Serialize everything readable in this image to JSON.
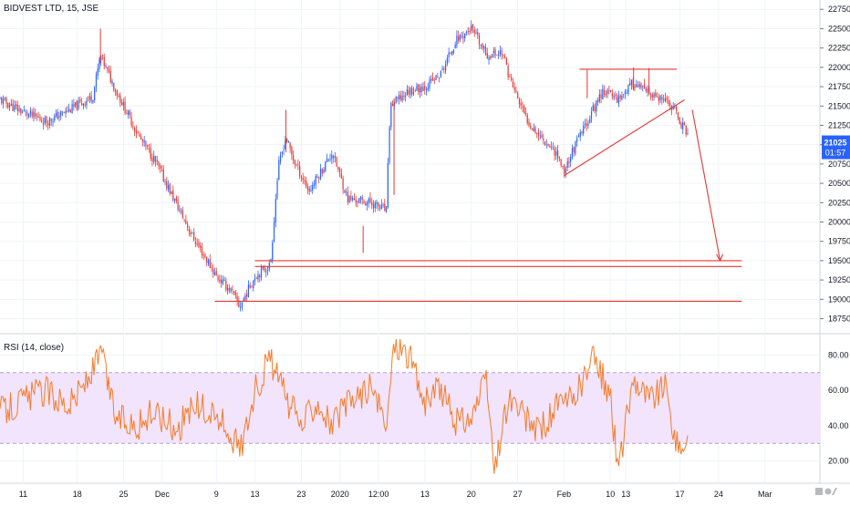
{
  "symbol_title": "BIDVEST LTD, 15, JSE",
  "rsi_title": "RSI (14, close)",
  "last_price": "21025",
  "countdown": "01:57",
  "colors": {
    "up": "#2962ff",
    "down": "#e53935",
    "drawing": "#e53935",
    "rsi_line": "#f57c2a",
    "rsi_band_fill": "#f1e4fc",
    "rsi_band_dash": "#b39ddb",
    "grid": "#f0f3fa",
    "axis_text": "#131722",
    "badge_bg": "#2962ff",
    "badge_text": "#ffffff"
  },
  "chart_data": [
    {
      "type": "candlestick",
      "title": "BIDVEST LTD, 15, JSE",
      "ylim": [
        18650,
        22800
      ],
      "y_ticks": [
        "22750",
        "22500",
        "22250",
        "22000",
        "21750",
        "21500",
        "21250",
        "21000",
        "20750",
        "20500",
        "20250",
        "20000",
        "19750",
        "19500",
        "19250",
        "19000",
        "18750"
      ],
      "x_ticks": [
        "11",
        "18",
        "25",
        "Dec",
        "9",
        "13",
        "23",
        "2020",
        "12:00",
        "13",
        "20",
        "27",
        "Feb",
        "10",
        "13",
        "17",
        "24",
        "Mar"
      ],
      "x_tick_pos": [
        3,
        10,
        16,
        21,
        28,
        33,
        39,
        44,
        49,
        55,
        61,
        67,
        73,
        79,
        81,
        88,
        93,
        99
      ],
      "x_range": [
        0,
        106
      ],
      "price_path": [
        [
          0,
          21580
        ],
        [
          3,
          21420
        ],
        [
          6,
          21300
        ],
        [
          9,
          21450
        ],
        [
          12,
          21620
        ],
        [
          13,
          22150
        ],
        [
          15,
          21700
        ],
        [
          18,
          21100
        ],
        [
          20,
          20800
        ],
        [
          22,
          20400
        ],
        [
          25,
          19800
        ],
        [
          28,
          19300
        ],
        [
          30,
          19100
        ],
        [
          31,
          18900
        ],
        [
          33,
          19300
        ],
        [
          35,
          19450
        ],
        [
          36,
          20700
        ],
        [
          37,
          21100
        ],
        [
          38,
          20800
        ],
        [
          40,
          20400
        ],
        [
          43,
          20900
        ],
        [
          45,
          20300
        ],
        [
          48,
          20250
        ],
        [
          50,
          20150
        ],
        [
          50.5,
          21500
        ],
        [
          53,
          21700
        ],
        [
          55,
          21750
        ],
        [
          57,
          21900
        ],
        [
          59,
          22350
        ],
        [
          61,
          22500
        ],
        [
          63,
          22150
        ],
        [
          65,
          22200
        ],
        [
          66,
          21850
        ],
        [
          68,
          21350
        ],
        [
          70,
          21100
        ],
        [
          72,
          20900
        ],
        [
          73,
          20650
        ],
        [
          74,
          20900
        ],
        [
          76,
          21300
        ],
        [
          78,
          21700
        ],
        [
          80,
          21600
        ],
        [
          82,
          21800
        ],
        [
          84,
          21650
        ],
        [
          86,
          21550
        ],
        [
          87,
          21500
        ],
        [
          88,
          21300
        ],
        [
          89,
          21150
        ]
      ],
      "vol_events": [
        [
          13,
          22500,
          22050
        ],
        [
          37,
          21450,
          20900
        ],
        [
          47,
          19950,
          19600
        ],
        [
          51,
          21600,
          20350
        ],
        [
          76,
          21980,
          21600
        ],
        [
          82,
          22000,
          21700
        ],
        [
          84,
          21990,
          21700
        ]
      ],
      "annotations": {
        "horizontal_levels": [
          {
            "y": 21975,
            "x_start": 75,
            "x_end": 87.6
          },
          {
            "y": 19500,
            "x_start": 33,
            "x_end": 96
          },
          {
            "y": 19425,
            "x_start": 33,
            "x_end": 96
          },
          {
            "y": 18975,
            "x_start": 27.8,
            "x_end": 96
          }
        ],
        "segments": [
          {
            "p1": [
              73,
              20600
            ],
            "p2": [
              88.6,
              21580
            ]
          },
          {
            "p1": [
              89.6,
              21450
            ],
            "p2": [
              93.2,
              19500
            ]
          }
        ]
      }
    },
    {
      "type": "line",
      "title": "RSI (14, close)",
      "ylim": [
        10,
        90
      ],
      "y_ticks": [
        "80.00",
        "60.00",
        "40.00",
        "20.00"
      ],
      "band": [
        30,
        70
      ],
      "x_range": [
        0,
        106
      ],
      "rsi_path": [
        [
          0,
          48
        ],
        [
          3,
          55
        ],
        [
          6,
          60
        ],
        [
          9,
          52
        ],
        [
          12,
          70
        ],
        [
          13,
          82
        ],
        [
          15,
          45
        ],
        [
          18,
          40
        ],
        [
          20,
          48
        ],
        [
          23,
          38
        ],
        [
          25,
          52
        ],
        [
          28,
          45
        ],
        [
          30,
          35
        ],
        [
          31,
          25
        ],
        [
          33,
          60
        ],
        [
          35,
          78
        ],
        [
          37,
          55
        ],
        [
          39,
          40
        ],
        [
          41,
          55
        ],
        [
          43,
          40
        ],
        [
          45,
          52
        ],
        [
          48,
          62
        ],
        [
          50,
          38
        ],
        [
          51,
          88
        ],
        [
          53,
          80
        ],
        [
          55,
          52
        ],
        [
          57,
          62
        ],
        [
          59,
          42
        ],
        [
          61,
          45
        ],
        [
          63,
          65
        ],
        [
          64,
          12
        ],
        [
          65,
          40
        ],
        [
          66,
          55
        ],
        [
          68,
          43
        ],
        [
          70,
          38
        ],
        [
          72,
          50
        ],
        [
          74,
          54
        ],
        [
          76,
          70
        ],
        [
          77,
          80
        ],
        [
          79,
          55
        ],
        [
          80,
          15
        ],
        [
          82,
          68
        ],
        [
          84,
          55
        ],
        [
          86,
          62
        ],
        [
          88,
          22
        ],
        [
          89,
          38
        ]
      ]
    }
  ]
}
